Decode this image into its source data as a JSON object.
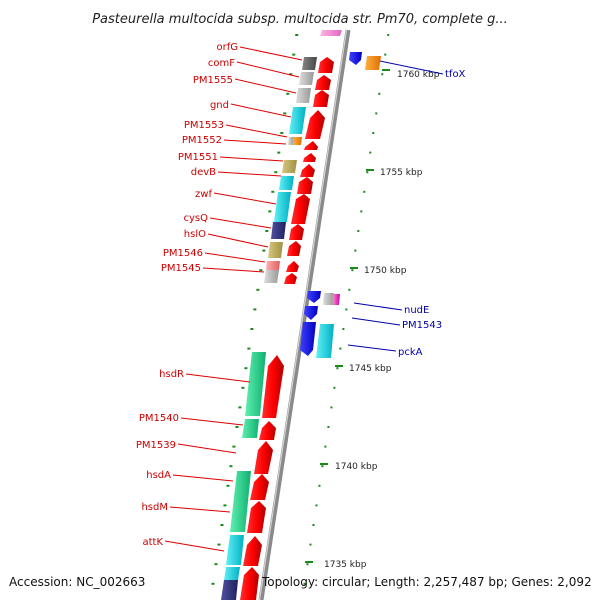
{
  "title": "Pasteurella multocida subsp. multocida str. Pm70, complete g...",
  "footer": {
    "accession": "Accession: NC_002663",
    "topology": "Topology: circular; Length: 2,257,487 bp; Genes: 2,092"
  },
  "scale_labels": [
    {
      "text": "1760 kbp",
      "kbp": 1760
    },
    {
      "text": "1755 kbp",
      "kbp": 1755
    },
    {
      "text": "1750 kbp",
      "kbp": 1750
    },
    {
      "text": "1745 kbp",
      "kbp": 1745
    },
    {
      "text": "1740 kbp",
      "kbp": 1740
    },
    {
      "text": "1735 kbp",
      "kbp": 1735
    }
  ],
  "genes_left": [
    {
      "name": "orfG"
    },
    {
      "name": "comF"
    },
    {
      "name": "PM1555"
    },
    {
      "name": "gnd"
    },
    {
      "name": "PM1553"
    },
    {
      "name": "PM1552"
    },
    {
      "name": "PM1551"
    },
    {
      "name": "devB"
    },
    {
      "name": "zwf"
    },
    {
      "name": "cysQ"
    },
    {
      "name": "hslO"
    },
    {
      "name": "PM1546"
    },
    {
      "name": "PM1545"
    },
    {
      "name": "hsdR"
    },
    {
      "name": "PM1540"
    },
    {
      "name": "PM1539"
    },
    {
      "name": "hsdA"
    },
    {
      "name": "hsdM"
    },
    {
      "name": "attK"
    }
  ],
  "genes_right": [
    {
      "name": "tfoX"
    },
    {
      "name": "nudE"
    },
    {
      "name": "PM1543"
    },
    {
      "name": "pckA"
    }
  ],
  "colors": {
    "forward_strand": "#ff0000",
    "reverse_strand": "#1a1aff",
    "backbone": "#999999",
    "tick": "#1a8a1a"
  }
}
